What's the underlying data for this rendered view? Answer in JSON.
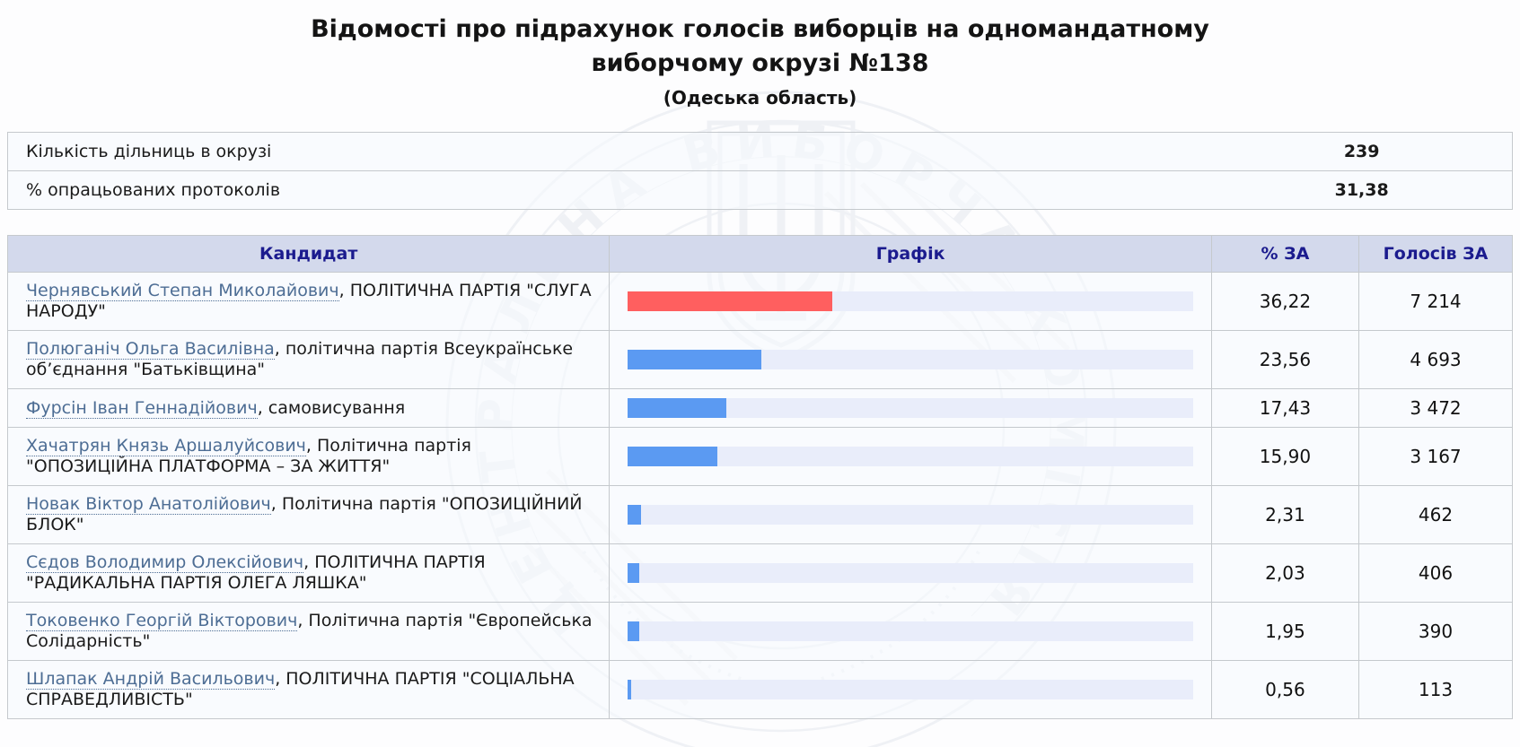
{
  "title": {
    "main": "Відомості про підрахунок голосів виборців на одномандатному виборчому окрузі №138",
    "region": "(Одеська область)"
  },
  "summary": {
    "rows": [
      {
        "label": "Кількість дільниць в окрузі",
        "value": "239"
      },
      {
        "label": "% опрацьованих протоколів",
        "value": "31,38"
      }
    ]
  },
  "table": {
    "headers": {
      "candidate": "Кандидат",
      "graph": "Графік",
      "percent": "% ЗА",
      "votes": "Голосів ЗА"
    },
    "rows": [
      {
        "name": "Чернявський Степан Миколайович",
        "party": ", ПОЛІТИЧНА ПАРТІЯ \"СЛУГА НАРОДУ\"",
        "percent": "36,22",
        "votes": "7 214",
        "bar_pct": 36.22,
        "bar_color": "#ff5f5f"
      },
      {
        "name": "Полюганіч Ольга Василівна",
        "party": ", політична партія Всеукраїнське об’єднання \"Батьківщина\"",
        "percent": "23,56",
        "votes": "4 693",
        "bar_pct": 23.56,
        "bar_color": "#5b9af2"
      },
      {
        "name": "Фурсін Іван Геннадійович",
        "party": ", самовисування",
        "percent": "17,43",
        "votes": "3 472",
        "bar_pct": 17.43,
        "bar_color": "#5b9af2"
      },
      {
        "name": "Хачатрян Князь Аршалуйсович",
        "party": ", Політична партія \"ОПОЗИЦІЙНА ПЛАТФОРМА – ЗА ЖИТТЯ\"",
        "percent": "15,90",
        "votes": "3 167",
        "bar_pct": 15.9,
        "bar_color": "#5b9af2"
      },
      {
        "name": "Новак Віктор Анатолійович",
        "party": ", Політична партія \"ОПОЗИЦІЙНИЙ БЛОК\"",
        "percent": "2,31",
        "votes": "462",
        "bar_pct": 2.31,
        "bar_color": "#5b9af2"
      },
      {
        "name": "Сєдов Володимир Олексійович",
        "party": ", ПОЛІТИЧНА ПАРТІЯ \"РАДИКАЛЬНА ПАРТІЯ ОЛЕГА ЛЯШКА\"",
        "percent": "2,03",
        "votes": "406",
        "bar_pct": 2.03,
        "bar_color": "#5b9af2"
      },
      {
        "name": "Токовенко Георгій Вікторович",
        "party": ", Політична партія \"Європейська Солідарність\"",
        "percent": "1,95",
        "votes": "390",
        "bar_pct": 1.95,
        "bar_color": "#5b9af2"
      },
      {
        "name": "Шлапак Андрій Васильович",
        "party": ", ПОЛІТИЧНА ПАРТІЯ \"СОЦІАЛЬНА СПРАВЕДЛИВІСТЬ\"",
        "percent": "0,56",
        "votes": "113",
        "bar_pct": 0.56,
        "bar_color": "#5b9af2"
      }
    ]
  },
  "watermark": {
    "text": "ЦЕНТРАЛЬНА ВИБОРЧА КОМІСІЯ"
  },
  "colors": {
    "bar_red": "#ff5f5f",
    "bar_blue": "#5b9af2",
    "bar_track": "#e9edfa",
    "header_bg": "#d3d9ec",
    "header_text": "#1b1b8e",
    "link": "#4d6d94"
  },
  "chart_data": {
    "type": "bar",
    "orientation": "horizontal",
    "categories": [
      "Чернявський Степан Миколайович",
      "Полюганіч Ольга Василівна",
      "Фурсін Іван Геннадійович",
      "Хачатрян Князь Аршалуйсович",
      "Новак Віктор Анатолійович",
      "Сєдов Володимир Олексійович",
      "Токовенко Георгій Вікторович",
      "Шлапак Андрій Васильович"
    ],
    "series": [
      {
        "name": "% ЗА",
        "values": [
          36.22,
          23.56,
          17.43,
          15.9,
          2.31,
          2.03,
          1.95,
          0.56
        ]
      },
      {
        "name": "Голосів ЗА",
        "values": [
          7214,
          4693,
          3472,
          3167,
          462,
          406,
          390,
          113
        ]
      }
    ],
    "title": "Відомості про підрахунок голосів виборців на одномандатному виборчому окрузі №138 (Одеська область)",
    "xlabel": "% ЗА",
    "ylabel": "Кандидат",
    "xlim": [
      0,
      100
    ],
    "grid": false,
    "legend_position": "none"
  }
}
